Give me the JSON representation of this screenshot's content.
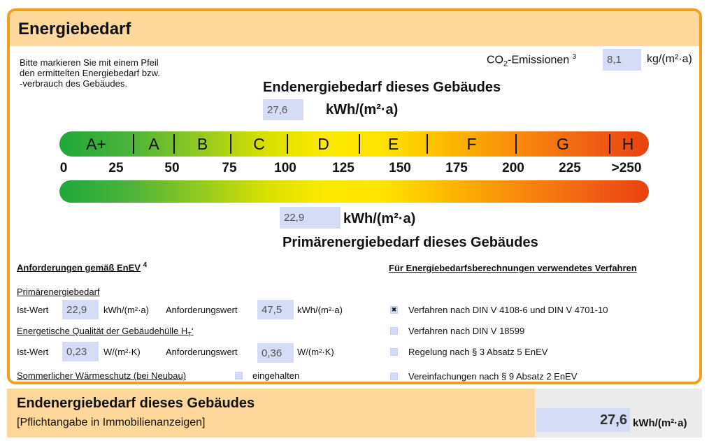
{
  "header": {
    "title": "Energiebedarf"
  },
  "instructions": [
    "Bitte markieren Sie mit einem Pfeil",
    "den ermittelten Energiebedarf bzw.",
    "-verbrauch des Gebäudes."
  ],
  "co2": {
    "label_prefix": "CO",
    "label_sub": "2",
    "label_suffix": "-Emissionen",
    "footnote": "3",
    "value": "8,1",
    "unit": "kg/(m²·a)"
  },
  "endenergie": {
    "title": "Endenergiebedarf dieses Gebäudes",
    "value": "27,6",
    "unit": "kWh/(m²·a)"
  },
  "scale": {
    "classes": [
      "A+",
      "A",
      "B",
      "C",
      "D",
      "E",
      "F",
      "G",
      "H"
    ],
    "ticks": [
      "0",
      "25",
      "50",
      "75",
      "100",
      "125",
      "150",
      "175",
      "200",
      "225",
      ">250"
    ]
  },
  "primaerenergie": {
    "title": "Primärenergiebedarf dieses Gebäudes",
    "value": "22,9",
    "unit": "kWh/(m²·a)"
  },
  "requirements": {
    "heading": "Anforderungen gemäß EnEV",
    "heading_footnote": "4",
    "primaer_heading": "Primärenergiebedarf",
    "ist_label": "Ist-Wert",
    "primaer_ist": "22,9",
    "primaer_unit": "kWh/(m²·a)",
    "anforderung_label": "Anforderungswert",
    "primaer_anforderung": "47,5",
    "huelle_heading_prefix": "Energetische Qualität der Gebäudehülle H",
    "huelle_heading_sub": "T",
    "huelle_heading_suffix": "‘",
    "huelle_ist": "0,23",
    "huelle_unit": "W/(m²·K)",
    "huelle_anforderung": "0,36",
    "sommer_label": "Sommerlicher Wärmeschutz (bei Neubau)",
    "sommer_checkbox_label": "eingehalten"
  },
  "verfahren": {
    "heading": "Für Energiebedarfsberechnungen verwendetes Verfahren",
    "options": [
      {
        "label": "Verfahren nach DIN V 4108-6 und DIN V 4701-10",
        "checked": true,
        "mark": "✖"
      },
      {
        "label": "Verfahren nach DIN V 18599",
        "checked": false
      },
      {
        "label": "Regelung nach § 3 Absatz 5 EnEV",
        "checked": false
      },
      {
        "label": "Vereinfachungen nach § 9 Absatz 2 EnEV",
        "checked": false
      }
    ]
  },
  "footer": {
    "title": "Endenergiebedarf dieses Gebäudes",
    "subtitle": "[Pflichtangabe in Immobilienanzeigen]",
    "value": "27,6",
    "unit": "kWh/(m²·a)"
  },
  "colors": {
    "border": "#f0a01e",
    "header_bg": "#fed79b",
    "field_bg": "#d4dcf6"
  }
}
